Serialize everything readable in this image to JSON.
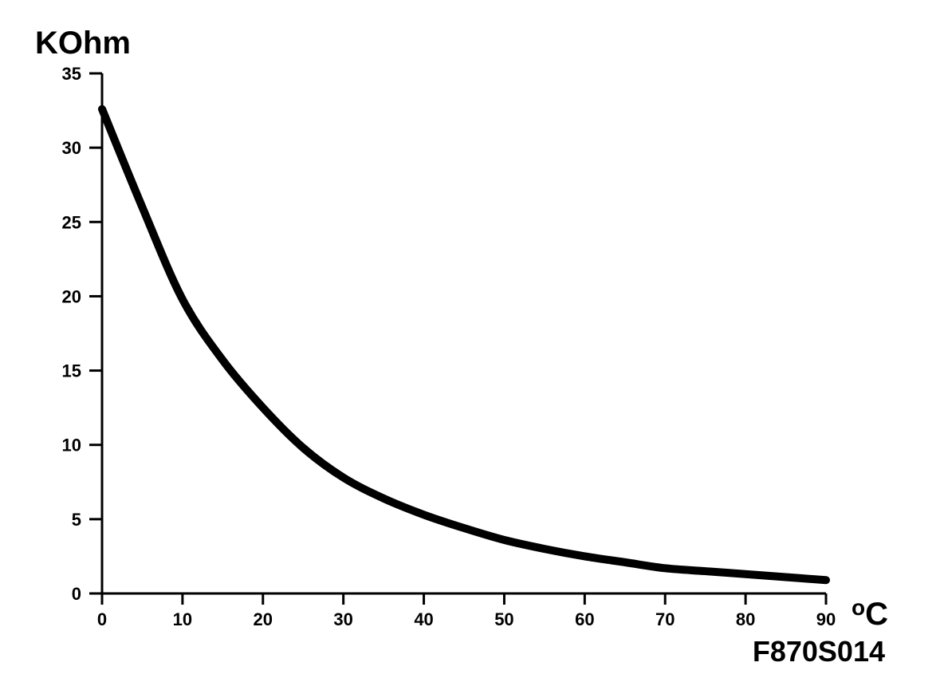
{
  "chart_data": {
    "type": "line",
    "ylabel": "KOhm",
    "xlabel_superscript": "o",
    "xlabel_main": "C",
    "code": "F870S014",
    "xlim": [
      0,
      90
    ],
    "ylim": [
      0,
      35
    ],
    "x_ticks": [
      0,
      10,
      20,
      30,
      40,
      50,
      60,
      70,
      80,
      90
    ],
    "y_ticks": [
      0,
      5,
      10,
      15,
      20,
      25,
      30,
      35
    ],
    "grid": false,
    "series": [
      {
        "x": [
          0,
          5,
          10,
          15,
          20,
          25,
          30,
          35,
          40,
          45,
          50,
          55,
          60,
          65,
          70,
          75,
          80,
          85,
          90
        ],
        "y": [
          32.6,
          26.0,
          19.8,
          15.7,
          12.5,
          9.8,
          7.8,
          6.4,
          5.3,
          4.4,
          3.6,
          3.0,
          2.5,
          2.1,
          1.7,
          1.5,
          1.3,
          1.1,
          0.9
        ]
      }
    ]
  },
  "colors": {
    "line": "#000000",
    "axis": "#000000",
    "background": "#ffffff"
  }
}
